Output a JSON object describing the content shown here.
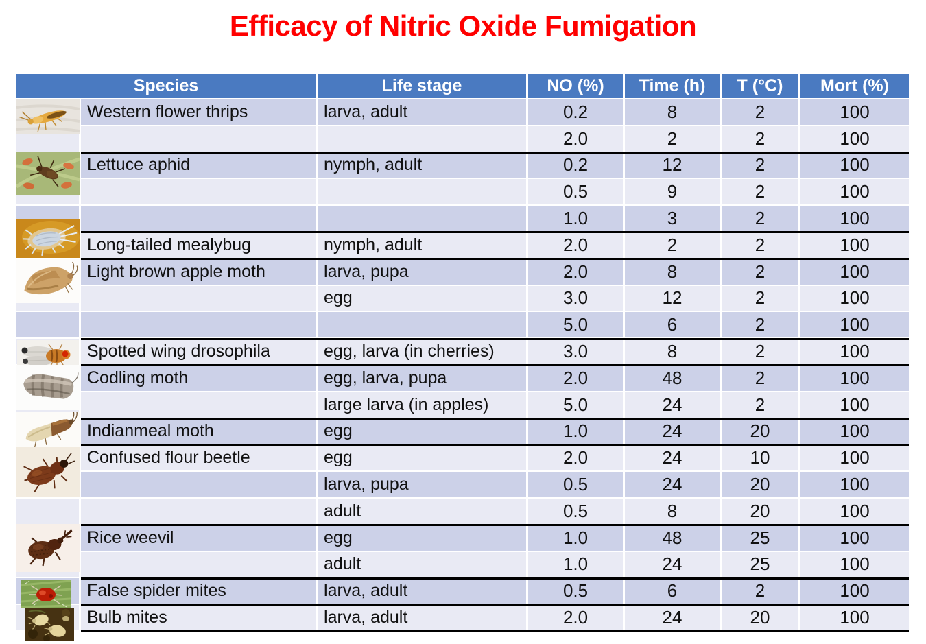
{
  "title": "Efficacy of Nitric Oxide Fumigation",
  "colors": {
    "title_red": "#ff0000",
    "header_bg": "#4a7ac1",
    "band_dark": "#ccd1e8",
    "band_light": "#e9eaf4",
    "group_separator": "#000000"
  },
  "table": {
    "columns": [
      "Species",
      "Life stage",
      "NO (%)",
      "Time (h)",
      "T (°C)",
      "Mort (%)"
    ],
    "species": [
      {
        "name": "Western flower thrips",
        "photo": "western-flower-thrips",
        "rows": [
          {
            "life_stage": "larva, adult",
            "no": "0.2",
            "time": "8",
            "t": "2",
            "mort": "100"
          },
          {
            "life_stage": "",
            "no": "2.0",
            "time": "2",
            "t": "2",
            "mort": "100"
          }
        ]
      },
      {
        "name": "Lettuce aphid",
        "photo": "lettuce-aphid",
        "rows": [
          {
            "life_stage": "nymph, adult",
            "no": "0.2",
            "time": "12",
            "t": "2",
            "mort": "100"
          },
          {
            "life_stage": "",
            "no": "0.5",
            "time": "9",
            "t": "2",
            "mort": "100"
          },
          {
            "life_stage": "",
            "no": "1.0",
            "time": "3",
            "t": "2",
            "mort": "100"
          }
        ]
      },
      {
        "name": "Long-tailed mealybug",
        "photo": "long-tailed-mealybug",
        "rows": [
          {
            "life_stage": "nymph, adult",
            "no": "2.0",
            "time": "2",
            "t": "2",
            "mort": "100"
          }
        ]
      },
      {
        "name": "Light brown apple moth",
        "photo": "light-brown-apple-moth",
        "rows": [
          {
            "life_stage": "larva, pupa",
            "no": "2.0",
            "time": "8",
            "t": "2",
            "mort": "100"
          },
          {
            "life_stage": "egg",
            "no": "3.0",
            "time": "12",
            "t": "2",
            "mort": "100"
          },
          {
            "life_stage": "",
            "no": "5.0",
            "time": "6",
            "t": "2",
            "mort": "100"
          }
        ]
      },
      {
        "name": "Spotted wing drosophila",
        "photo": "spotted-wing-drosophila",
        "rows": [
          {
            "life_stage": "egg, larva (in cherries)",
            "no": "3.0",
            "time": "8",
            "t": "2",
            "mort": "100"
          }
        ]
      },
      {
        "name": "Codling moth",
        "photo": "codling-moth",
        "rows": [
          {
            "life_stage": "egg, larva, pupa",
            "no": "2.0",
            "time": "48",
            "t": "2",
            "mort": "100"
          },
          {
            "life_stage": "large larva (in apples)",
            "no": "5.0",
            "time": "24",
            "t": "2",
            "mort": "100"
          }
        ]
      },
      {
        "name": "Indianmeal moth",
        "photo": "indianmeal-moth",
        "rows": [
          {
            "life_stage": "egg",
            "no": "1.0",
            "time": "24",
            "t": "20",
            "mort": "100"
          }
        ]
      },
      {
        "name": "Confused flour beetle",
        "photo": "confused-flour-beetle",
        "rows": [
          {
            "life_stage": "egg",
            "no": "2.0",
            "time": "24",
            "t": "10",
            "mort": "100"
          },
          {
            "life_stage": "larva, pupa",
            "no": "0.5",
            "time": "24",
            "t": "20",
            "mort": "100"
          },
          {
            "life_stage": "adult",
            "no": "0.5",
            "time": "8",
            "t": "20",
            "mort": "100"
          }
        ]
      },
      {
        "name": "Rice weevil",
        "photo": "rice-weevil",
        "rows": [
          {
            "life_stage": "egg",
            "no": "1.0",
            "time": "48",
            "t": "25",
            "mort": "100"
          },
          {
            "life_stage": "adult",
            "no": "1.0",
            "time": "24",
            "t": "25",
            "mort": "100"
          }
        ]
      },
      {
        "name": "False spider mites",
        "photo": "false-spider-mites",
        "rows": [
          {
            "life_stage": "larva, adult",
            "no": "0.5",
            "time": "6",
            "t": "2",
            "mort": "100"
          }
        ]
      },
      {
        "name": "Bulb mites",
        "photo": "bulb-mites",
        "rows": [
          {
            "life_stage": "larva, adult",
            "no": "2.0",
            "time": "24",
            "t": "20",
            "mort": "100"
          }
        ]
      }
    ]
  }
}
